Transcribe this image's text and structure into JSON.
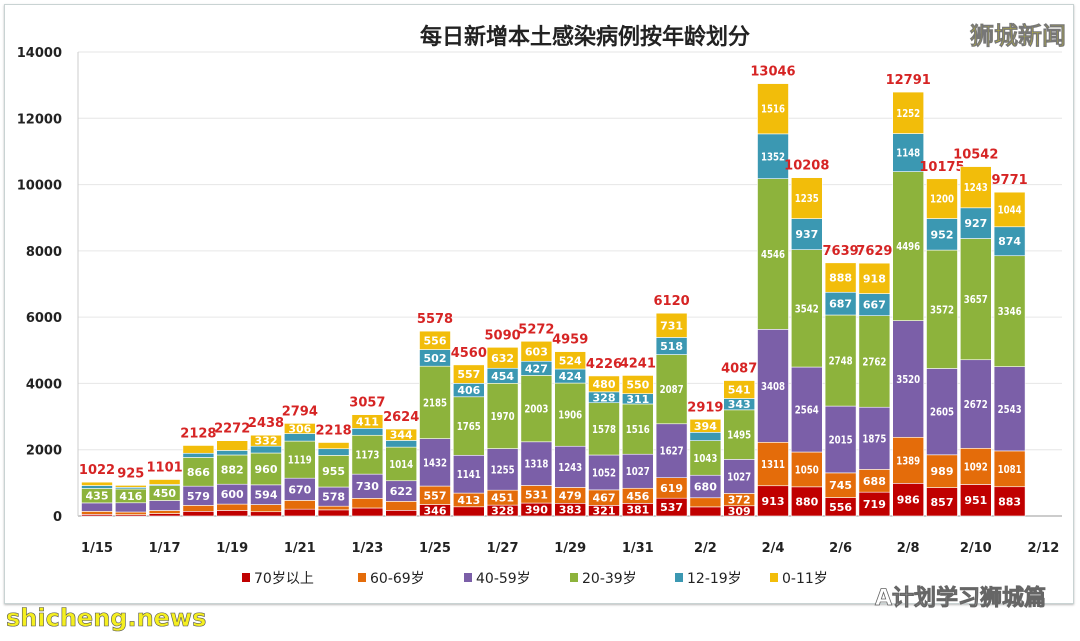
{
  "watermarks": {
    "top_right": "狮城新闻",
    "bottom_left": "shicheng.news",
    "bottom_right": "A计划学习狮城篇"
  },
  "chart_data": {
    "type": "bar",
    "stacked": true,
    "title": "每日新增本土感染病例按年龄划分",
    "xlabel": "",
    "ylabel": "",
    "ylim": [
      0,
      14000
    ],
    "yticks": [
      0,
      2000,
      4000,
      6000,
      8000,
      10000,
      12000,
      14000
    ],
    "grid": true,
    "legend": "bottom",
    "categories": [
      "1/15",
      "1/16",
      "1/17",
      "1/18",
      "1/19",
      "1/20",
      "1/21",
      "1/22",
      "1/23",
      "1/24",
      "1/25",
      "1/26",
      "1/27",
      "1/28",
      "1/29",
      "1/30",
      "1/31",
      "2/1",
      "2/2",
      "2/3",
      "2/4",
      "2/5",
      "2/6",
      "2/7",
      "2/8",
      "2/9",
      "2/10",
      "2/11"
    ],
    "xtick_labels": [
      "1/15",
      "1/17",
      "1/19",
      "1/21",
      "1/23",
      "1/25",
      "1/27",
      "1/29",
      "1/31",
      "2/2",
      "2/4",
      "2/6",
      "2/8",
      "2/10",
      "2/12"
    ],
    "totals": [
      1022,
      925,
      1101,
      2128,
      2272,
      2438,
      2794,
      2218,
      3057,
      2624,
      5578,
      4560,
      5090,
      5272,
      4959,
      4226,
      4241,
      6120,
      2919,
      4087,
      13046,
      10208,
      7639,
      7629,
      12791,
      10175,
      10542,
      9771
    ],
    "series": [
      {
        "name": "70岁以上",
        "color": "#c00000",
        "values": [
          50,
          40,
          74,
          141,
          168,
          129,
          206,
          185,
          242,
          171,
          346,
          278,
          328,
          390,
          383,
          321,
          381,
          537,
          275,
          309,
          913,
          880,
          556,
          719,
          986,
          857,
          951,
          883
        ]
      },
      {
        "name": "60-69岁",
        "color": "#e46c0a",
        "values": [
          90,
          80,
          93,
          180,
          191,
          217,
          265,
          111,
          291,
          271,
          557,
          413,
          451,
          531,
          479,
          467,
          456,
          619,
          275,
          372,
          1311,
          1050,
          745,
          688,
          1389,
          989,
          1092,
          1081
        ]
      },
      {
        "name": "40-59岁",
        "color": "#7b5fa8",
        "values": [
          255,
          279,
          300,
          579,
          600,
          594,
          670,
          578,
          730,
          622,
          1432,
          1141,
          1255,
          1318,
          1243,
          1052,
          1027,
          1627,
          680,
          1027,
          3408,
          2564,
          2015,
          1875,
          3520,
          2605,
          2672,
          2543
        ]
      },
      {
        "name": "20-39岁",
        "color": "#8db33c",
        "values": [
          435,
          416,
          450,
          866,
          882,
          960,
          1119,
          955,
          1173,
          1014,
          2185,
          1765,
          1970,
          2003,
          1906,
          1578,
          1516,
          2087,
          1043,
          1495,
          4546,
          3542,
          2748,
          2762,
          4496,
          3572,
          3657,
          3346
        ]
      },
      {
        "name": "12-19岁",
        "color": "#3b98b2",
        "values": [
          90,
          50,
          34,
          127,
          137,
          206,
          228,
          201,
          210,
          202,
          502,
          406,
          454,
          427,
          424,
          328,
          311,
          518,
          252,
          343,
          1352,
          937,
          687,
          667,
          1148,
          952,
          927,
          874
        ]
      },
      {
        "name": "0-11岁",
        "color": "#f2bd0a",
        "values": [
          102,
          60,
          150,
          235,
          294,
          332,
          306,
          188,
          411,
          344,
          556,
          557,
          632,
          603,
          524,
          480,
          550,
          731,
          394,
          541,
          1516,
          1235,
          888,
          918,
          1252,
          1200,
          1243,
          1044
        ]
      }
    ],
    "total_label_color": "#d62424"
  }
}
